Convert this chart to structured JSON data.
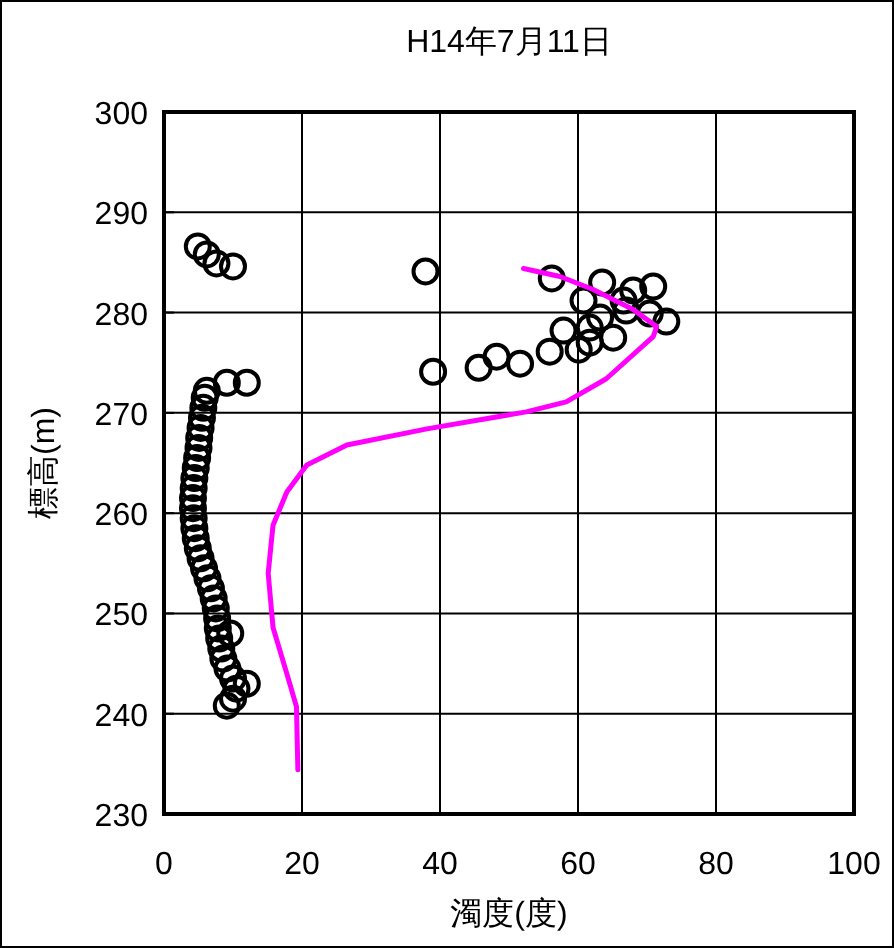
{
  "chart_data": {
    "type": "scatter",
    "title": "H14年7月11日",
    "xlabel": "濁度(度)",
    "ylabel": "標高(m)",
    "xlim": [
      0,
      100
    ],
    "ylim": [
      230,
      300
    ],
    "xticks": [
      0,
      20,
      40,
      60,
      80,
      100
    ],
    "yticks": [
      230,
      240,
      250,
      260,
      270,
      280,
      290,
      300
    ],
    "grid": true,
    "series": [
      {
        "marker": "circle",
        "color": "#000000",
        "x": [
          4.9,
          6.2,
          7.6,
          10.0,
          12.0,
          9.1,
          6.2,
          5.9,
          5.7,
          5.5,
          5.3,
          5.1,
          5.0,
          4.8,
          4.6,
          4.4,
          4.3,
          4.2,
          4.2,
          4.3,
          4.4,
          4.6,
          4.9,
          5.3,
          5.8,
          6.3,
          6.8,
          7.2,
          7.5,
          7.7,
          7.8,
          8.0,
          8.3,
          8.6,
          9.2,
          10.0,
          10.5,
          10.0,
          9.1,
          12.0,
          9.6,
          37.9,
          39.0,
          45.6,
          48.2,
          51.6,
          56.2,
          55.9,
          57.9,
          60.1,
          61.7,
          60.8,
          63.5,
          63.2,
          61.7,
          65.1,
          66.6,
          68.0,
          67.0,
          70.9,
          70.4,
          72.8
        ],
        "values": [
          286.6,
          285.8,
          284.9,
          284.6,
          273.0,
          273.0,
          272.2,
          271.5,
          270.5,
          269.5,
          268.5,
          267.5,
          266.5,
          265.5,
          264.5,
          263.5,
          262.5,
          261.5,
          260.5,
          259.5,
          258.5,
          257.5,
          256.5,
          255.5,
          254.5,
          253.5,
          252.5,
          251.5,
          250.5,
          249.5,
          248.5,
          247.5,
          246.5,
          245.5,
          244.5,
          243.5,
          242.5,
          241.5,
          240.8,
          243.0,
          248.0,
          284.1,
          274.1,
          274.5,
          275.6,
          274.9,
          283.4,
          276.1,
          278.2,
          276.3,
          277.0,
          281.2,
          283.0,
          279.5,
          278.5,
          277.5,
          281.2,
          282.2,
          280.2,
          282.6,
          279.9,
          279.1
        ]
      },
      {
        "type": "line",
        "color": "#ff00ff",
        "x": [
          19.4,
          19.2,
          17.8,
          15.8,
          15.1,
          15.8,
          17.8,
          20.7,
          26.5,
          38.1,
          52.5,
          58.3,
          64.1,
          70.9,
          71.4,
          68.0,
          62.2,
          57.4,
          52.1
        ],
        "values": [
          234.4,
          240.7,
          244.0,
          248.6,
          254.0,
          258.8,
          262.1,
          264.8,
          266.8,
          268.4,
          270.1,
          271.1,
          273.4,
          277.6,
          278.6,
          280.3,
          282.3,
          283.6,
          284.4
        ]
      }
    ]
  }
}
